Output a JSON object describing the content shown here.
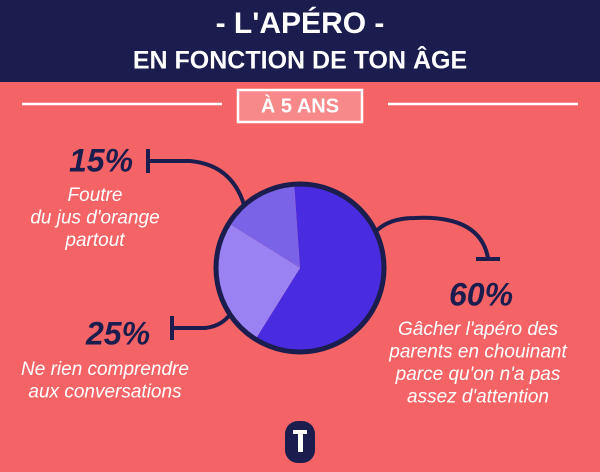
{
  "chart_data": {
    "type": "pie",
    "title": "- L'APÉRO -",
    "subtitle": "EN FONCTION DE TON ÂGE",
    "section": "À 5 ANS",
    "values": [
      60,
      25,
      15
    ],
    "value_labels": [
      "60%",
      "25%",
      "15%"
    ],
    "labels": [
      [
        "Gâcher l'apéro des",
        "parents en chouinant",
        "parce qu'on n'a pas",
        "assez d'attention"
      ],
      [
        "Ne rien comprendre",
        "aux conversations"
      ],
      [
        "Foutre",
        "du jus d'orange",
        "partout"
      ]
    ],
    "colors": [
      "#4a2ce0",
      "#9a82f2",
      "#7b63e8"
    ]
  }
}
